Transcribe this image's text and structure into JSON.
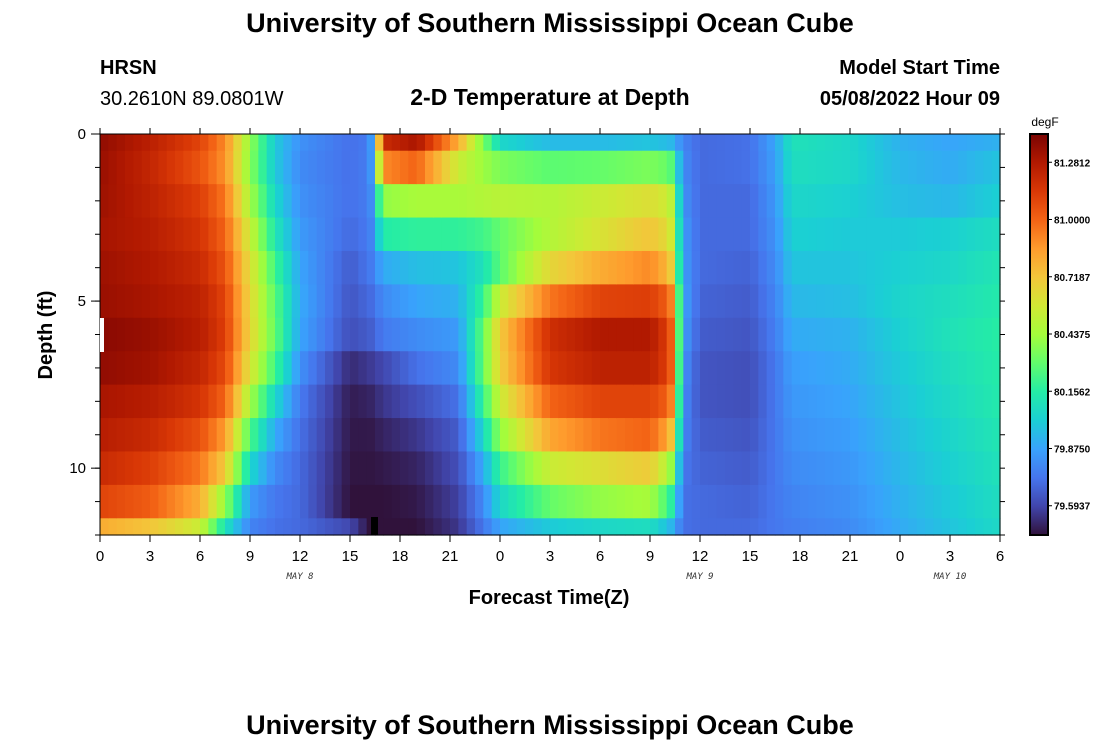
{
  "page": {
    "title_top": "University of Southern Mississippi Ocean Cube",
    "title_bottom": "University of Southern Mississippi Ocean Cube",
    "station_name": "HRSN",
    "station_coords": "30.2610N  89.0801W",
    "model_start_label": "Model Start Time",
    "model_start_value": "05/08/2022 Hour 09"
  },
  "chart_data": {
    "type": "heatmap",
    "title": "2-D Temperature at Depth",
    "xlabel": "Forecast Time(Z)",
    "ylabel": "Depth (ft)",
    "x_range_hours": [
      0,
      54
    ],
    "y_range": [
      0,
      12
    ],
    "x_ticks": [
      "0",
      "3",
      "6",
      "9",
      "12",
      "15",
      "18",
      "21",
      "0",
      "3",
      "6",
      "9",
      "12",
      "15",
      "18",
      "21",
      "0",
      "3",
      "6"
    ],
    "y_ticks": [
      {
        "value": 0,
        "label": "0"
      },
      {
        "value": 5,
        "label": "5"
      },
      {
        "value": 10,
        "label": "10"
      }
    ],
    "date_labels": [
      {
        "hour": 12,
        "label": "MAY 8"
      },
      {
        "hour": 36,
        "label": "MAY 9"
      },
      {
        "hour": 51,
        "label": "MAY 10"
      }
    ],
    "colorbar": {
      "unit": "degF",
      "min": 79.45,
      "max": 81.42,
      "labels": [
        "81.2812",
        "81.0000",
        "80.7187",
        "80.4375",
        "80.1562",
        "79.8750",
        "79.5937"
      ],
      "stops": [
        "#30123b",
        "#4145ab",
        "#4675ed",
        "#39a2fc",
        "#1bcfd4",
        "#24eca6",
        "#61fc6c",
        "#a4fc3b",
        "#d1e834",
        "#f3c63a",
        "#fe9b2d",
        "#f36315",
        "#d93806",
        "#b11901",
        "#7a0402"
      ]
    },
    "depth_rows": [
      0,
      1,
      2,
      3,
      4,
      5,
      6,
      7,
      8,
      9,
      10,
      11,
      12
    ],
    "control_points": [
      {
        "t": 0,
        "v": [
          81.36,
          81.34,
          81.33,
          81.31,
          81.33,
          81.34,
          81.38,
          81.36,
          81.3,
          81.26,
          81.2,
          81.1,
          80.8
        ]
      },
      {
        "t": 3,
        "v": [
          81.25,
          81.22,
          81.24,
          81.26,
          81.28,
          81.3,
          81.34,
          81.32,
          81.26,
          81.2,
          81.12,
          81.02,
          80.72
        ]
      },
      {
        "t": 6,
        "v": [
          81.1,
          81.05,
          81.12,
          81.16,
          81.2,
          81.24,
          81.26,
          81.22,
          81.16,
          81.06,
          80.95,
          80.8,
          80.55
        ]
      },
      {
        "t": 7.5,
        "v": [
          80.9,
          80.88,
          80.95,
          81.0,
          81.05,
          81.1,
          81.12,
          81.08,
          81.0,
          80.85,
          80.7,
          80.4,
          80.1
        ]
      },
      {
        "t": 9,
        "v": [
          80.4,
          80.38,
          80.45,
          80.55,
          80.62,
          80.65,
          80.66,
          80.6,
          80.45,
          80.25,
          80.05,
          79.85,
          79.78
        ]
      },
      {
        "t": 10.5,
        "v": [
          80.0,
          80.0,
          80.05,
          80.12,
          80.22,
          80.28,
          80.3,
          80.22,
          80.05,
          79.9,
          79.8,
          79.74,
          79.72
        ]
      },
      {
        "t": 12,
        "v": [
          79.82,
          79.8,
          79.82,
          79.85,
          79.88,
          79.9,
          79.88,
          79.82,
          79.75,
          79.72,
          79.7,
          79.7,
          79.7
        ]
      },
      {
        "t": 15,
        "v": [
          79.72,
          79.72,
          79.72,
          79.7,
          79.66,
          79.64,
          79.62,
          79.52,
          79.48,
          79.47,
          79.46,
          79.45,
          79.6
        ]
      },
      {
        "t": 16.2,
        "v": [
          79.75,
          79.76,
          79.76,
          79.75,
          79.74,
          79.7,
          79.66,
          79.56,
          79.5,
          79.47,
          79.46,
          79.45,
          79.45
        ]
      },
      {
        "t": 17,
        "v": [
          81.2,
          80.9,
          80.4,
          80.15,
          79.9,
          79.8,
          79.75,
          79.6,
          79.55,
          79.5,
          79.47,
          79.45,
          79.45
        ]
      },
      {
        "t": 19,
        "v": [
          81.3,
          81.0,
          80.45,
          80.18,
          79.96,
          79.88,
          79.8,
          79.72,
          79.62,
          79.55,
          79.5,
          79.47,
          79.45
        ]
      },
      {
        "t": 21.5,
        "v": [
          80.8,
          80.55,
          80.45,
          80.18,
          79.98,
          79.92,
          79.85,
          79.8,
          79.72,
          79.66,
          79.62,
          79.58,
          79.55
        ]
      },
      {
        "t": 23,
        "v": [
          80.35,
          80.42,
          80.48,
          80.22,
          80.1,
          80.2,
          80.3,
          80.3,
          80.2,
          80.05,
          79.9,
          79.8,
          79.74
        ]
      },
      {
        "t": 24,
        "v": [
          80.05,
          80.35,
          80.5,
          80.3,
          80.28,
          80.55,
          80.7,
          80.68,
          80.55,
          80.4,
          80.2,
          80.05,
          79.88
        ]
      },
      {
        "t": 27,
        "v": [
          79.95,
          80.28,
          80.48,
          80.48,
          80.65,
          80.95,
          81.18,
          81.15,
          81.0,
          80.82,
          80.55,
          80.3,
          80.0
        ]
      },
      {
        "t": 30,
        "v": [
          79.95,
          80.3,
          80.55,
          80.6,
          80.8,
          81.1,
          81.28,
          81.24,
          81.1,
          80.95,
          80.62,
          80.4,
          80.05
        ]
      },
      {
        "t": 33,
        "v": [
          79.98,
          80.35,
          80.62,
          80.72,
          80.9,
          81.12,
          81.28,
          81.24,
          81.1,
          81.0,
          80.7,
          80.45,
          80.08
        ]
      },
      {
        "t": 34.2,
        "v": [
          79.95,
          80.3,
          80.55,
          80.62,
          80.75,
          81.0,
          81.1,
          81.1,
          81.0,
          80.8,
          80.45,
          80.2,
          79.95
        ]
      },
      {
        "t": 35,
        "v": [
          79.78,
          79.8,
          79.82,
          79.85,
          79.86,
          79.88,
          79.86,
          79.82,
          79.8,
          79.78,
          79.74,
          79.72,
          79.72
        ]
      },
      {
        "t": 36,
        "v": [
          79.7,
          79.7,
          79.7,
          79.7,
          79.7,
          79.68,
          79.66,
          79.64,
          79.64,
          79.66,
          79.68,
          79.7,
          79.7
        ]
      },
      {
        "t": 39,
        "v": [
          79.72,
          79.72,
          79.7,
          79.7,
          79.68,
          79.66,
          79.64,
          79.62,
          79.62,
          79.64,
          79.66,
          79.68,
          79.7
        ]
      },
      {
        "t": 40.5,
        "v": [
          79.88,
          79.86,
          79.84,
          79.82,
          79.8,
          79.78,
          79.76,
          79.74,
          79.74,
          79.74,
          79.74,
          79.74,
          79.74
        ]
      },
      {
        "t": 41.5,
        "v": [
          80.1,
          80.08,
          80.05,
          80.02,
          79.98,
          79.94,
          79.9,
          79.86,
          79.84,
          79.82,
          79.8,
          79.78,
          79.76
        ]
      },
      {
        "t": 45,
        "v": [
          80.05,
          80.05,
          80.02,
          80.0,
          79.98,
          79.96,
          79.92,
          79.9,
          79.88,
          79.86,
          79.84,
          79.82,
          79.8
        ]
      },
      {
        "t": 48,
        "v": [
          79.92,
          79.94,
          79.96,
          80.0,
          80.02,
          80.04,
          80.02,
          80.0,
          79.98,
          79.96,
          79.94,
          79.92,
          79.9
        ]
      },
      {
        "t": 51,
        "v": [
          79.88,
          79.9,
          79.94,
          80.02,
          80.05,
          80.08,
          80.1,
          80.08,
          80.06,
          80.04,
          80.02,
          80.0,
          79.98
        ]
      },
      {
        "t": 54,
        "v": [
          79.92,
          79.98,
          80.02,
          80.08,
          80.12,
          80.14,
          80.16,
          80.15,
          80.14,
          80.12,
          80.1,
          80.08,
          80.06
        ]
      }
    ]
  }
}
